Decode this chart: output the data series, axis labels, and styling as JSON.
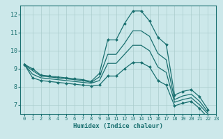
{
  "xlabel": "Humidex (Indice chaleur)",
  "bg_color": "#cce8ea",
  "grid_color": "#aacccc",
  "line_color": "#1a7070",
  "xlim": [
    -0.5,
    23
  ],
  "ylim": [
    6.5,
    12.5
  ],
  "yticks": [
    7,
    8,
    9,
    10,
    11,
    12
  ],
  "xticks": [
    0,
    1,
    2,
    3,
    4,
    5,
    6,
    7,
    8,
    9,
    10,
    11,
    12,
    13,
    14,
    15,
    16,
    17,
    18,
    19,
    20,
    21,
    22,
    23
  ],
  "curves": [
    {
      "x": [
        0,
        1,
        2,
        3,
        4,
        5,
        6,
        7,
        8,
        9,
        10,
        11,
        12,
        13,
        14,
        15,
        16,
        17,
        18,
        19,
        20,
        21,
        22
      ],
      "y": [
        9.25,
        9.0,
        8.65,
        8.6,
        8.55,
        8.5,
        8.45,
        8.4,
        8.3,
        8.75,
        10.6,
        10.6,
        11.5,
        12.2,
        12.2,
        11.65,
        10.75,
        10.35,
        7.55,
        7.75,
        7.85,
        7.45,
        6.75
      ],
      "marker": "D",
      "markersize": 2.0,
      "lw": 0.9
    },
    {
      "x": [
        0,
        1,
        2,
        3,
        4,
        5,
        6,
        7,
        8,
        9,
        10,
        11,
        12,
        13,
        14,
        15,
        16,
        17,
        18,
        19,
        20,
        21,
        22,
        23
      ],
      "y": [
        9.25,
        8.9,
        8.6,
        8.55,
        8.5,
        8.45,
        8.4,
        8.35,
        8.25,
        8.55,
        9.8,
        9.8,
        10.4,
        11.1,
        11.1,
        10.8,
        9.85,
        9.5,
        7.3,
        7.5,
        7.6,
        7.2,
        6.6,
        null
      ],
      "marker": null,
      "markersize": 0,
      "lw": 0.9
    },
    {
      "x": [
        0,
        1,
        2,
        3,
        4,
        5,
        6,
        7,
        8,
        9,
        10,
        11,
        12,
        13,
        14,
        15,
        16,
        17,
        18,
        19,
        20,
        21,
        22,
        23
      ],
      "y": [
        9.25,
        8.7,
        8.5,
        8.45,
        8.4,
        8.35,
        8.3,
        8.25,
        8.2,
        8.35,
        9.3,
        9.3,
        9.8,
        10.3,
        10.3,
        10.0,
        9.1,
        8.8,
        7.15,
        7.3,
        7.4,
        7.0,
        6.5,
        null
      ],
      "marker": null,
      "markersize": 0,
      "lw": 0.9
    },
    {
      "x": [
        0,
        1,
        2,
        3,
        4,
        5,
        6,
        7,
        8,
        9,
        10,
        11,
        12,
        13,
        14,
        15,
        16,
        17,
        18,
        19,
        20,
        21,
        22,
        23
      ],
      "y": [
        9.25,
        8.5,
        8.35,
        8.3,
        8.25,
        8.2,
        8.15,
        8.1,
        8.05,
        8.1,
        8.6,
        8.6,
        9.0,
        9.35,
        9.35,
        9.1,
        8.35,
        8.1,
        6.95,
        7.1,
        7.2,
        6.8,
        6.3,
        null
      ],
      "marker": "D",
      "markersize": 2.0,
      "lw": 0.9
    }
  ]
}
